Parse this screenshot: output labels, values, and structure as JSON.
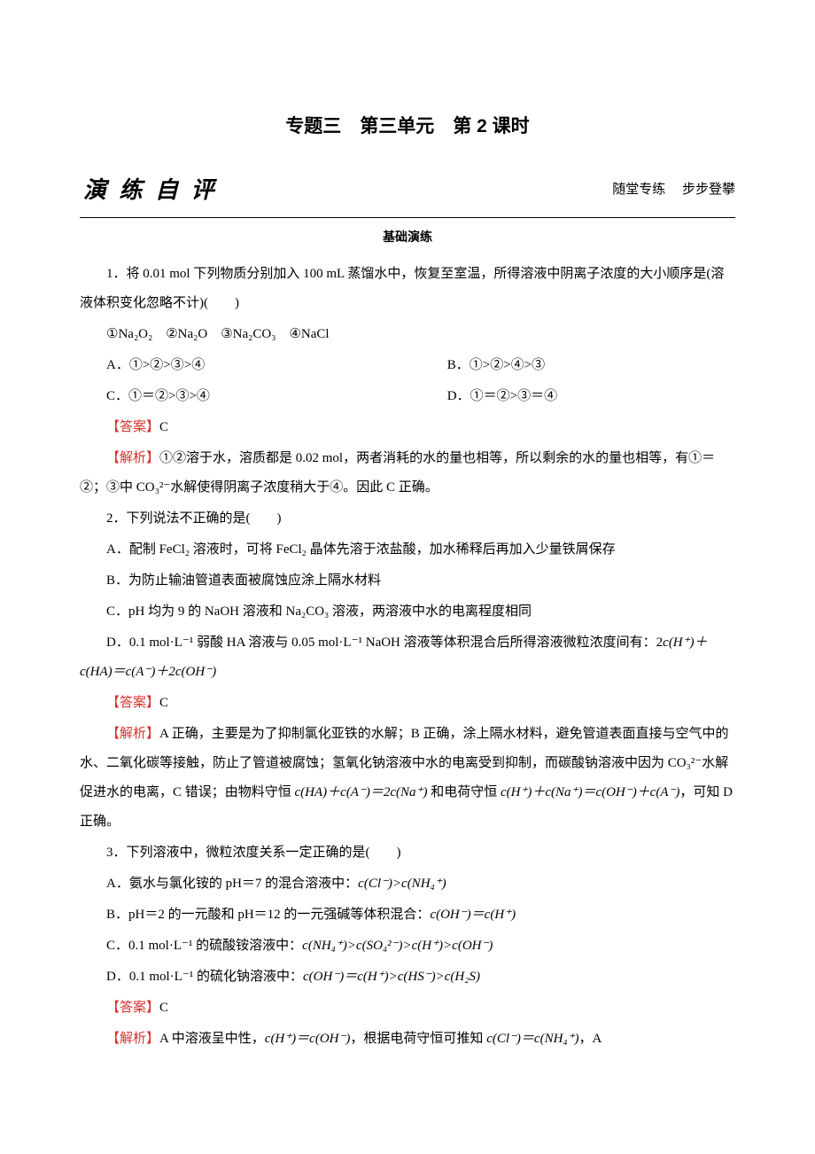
{
  "colors": {
    "text": "#000000",
    "answer": "#d8312f",
    "background": "#ffffff",
    "rule": "#000000"
  },
  "typography": {
    "body_font": "SimSun / 宋体",
    "title_font": "SimHei / 黑体",
    "kaiti_font": "KaiTi / 楷体",
    "body_size_pt": 15,
    "title_size_pt": 21,
    "section_title_size_pt": 26,
    "line_height": 2.2
  },
  "title": "专题三　第三单元　第 2 课时",
  "section": {
    "heading": "演 练 自 评",
    "subtitle": "随堂专练　 步步登攀",
    "sub_heading": "基础演练"
  },
  "q1": {
    "stem": "1．将 0.01 mol 下列物质分别加入 100 mL 蒸馏水中，恢复至室温，所得溶液中阴离子浓度的大小顺序是(溶液体积变化忽略不计)(　　)",
    "items": "①Na₂O₂　②Na₂O　③Na₂CO₃　④NaCl",
    "optA": "A．①>②>③>④",
    "optB": "B．①>②>④>③",
    "optC": "C．①＝②>③>④",
    "optD": "D．①＝②>③＝④",
    "answer_label": "【答案】",
    "answer_value": "C",
    "analysis_label": "【解析】",
    "analysis_text": "①②溶于水，溶质都是 0.02 mol，两者消耗的水的量也相等，所以剩余的水的量也相等，有①＝②；③中 CO₃²⁻水解使得阴离子浓度稍大于④。因此 C 正确。"
  },
  "q2": {
    "stem": "2．下列说法不正确的是(　　)",
    "optA": "A．配制 FeCl₂ 溶液时，可将 FeCl₂ 晶体先溶于浓盐酸，加水稀释后再加入少量铁屑保存",
    "optB": "B．为防止输油管道表面被腐蚀应涂上隔水材料",
    "optC": "C．pH 均为 9 的 NaOH 溶液和 Na₂CO₃ 溶液，两溶液中水的电离程度相同",
    "optD_pre": "D．0.1 mol·L⁻¹ 弱酸 HA 溶液与 0.05 mol·L⁻¹ NaOH 溶液等体积混合后所得溶液微粒浓度间有：2",
    "optD_formula": "c(H⁺)＋c(HA)＝c(A⁻)＋2c(OH⁻)",
    "answer_label": "【答案】",
    "answer_value": "C",
    "analysis_label": "【解析】",
    "analysis_text_1": "A 正确，主要是为了抑制氯化亚铁的水解；B 正确，涂上隔水材料，避免管道表面直接与空气中的水、二氧化碳等接触，防止了管道被腐蚀；氢氧化钠溶液中水的电离受到抑制，而碳酸钠溶液中因为 CO₃²⁻水解促进水的电离，C 错误；由物料守恒 ",
    "analysis_formula_1": "c(HA)＋c(A⁻)＝2c(Na⁺)",
    "analysis_text_2": " 和电荷守恒 ",
    "analysis_formula_2": "c(H⁺)＋c(Na⁺)＝c(OH⁻)＋c(A⁻)",
    "analysis_text_3": "，可知 D 正确。"
  },
  "q3": {
    "stem": "3．下列溶液中，微粒浓度关系一定正确的是(　　)",
    "optA_pre": "A．氨水与氯化铵的 pH＝7 的混合溶液中：",
    "optA_formula": "c(Cl⁻)>c(NH₄⁺)",
    "optB_pre": "B．pH＝2 的一元酸和 pH＝12 的一元强碱等体积混合：",
    "optB_formula": "c(OH⁻)＝c(H⁺)",
    "optC_pre": "C．0.1 mol·L⁻¹ 的硫酸铵溶液中：",
    "optC_formula": "c(NH₄⁺)>c(SO₄²⁻)>c(H⁺)>c(OH⁻)",
    "optD_pre": "D．0.1 mol·L⁻¹ 的硫化钠溶液中：",
    "optD_formula": "c(OH⁻)＝c(H⁺)>c(HS⁻)>c(H₂S)",
    "answer_label": "【答案】",
    "answer_value": "C",
    "analysis_label": "【解析】",
    "analysis_text_1": "A 中溶液呈中性，",
    "analysis_formula_1": "c(H⁺)＝c(OH⁻)",
    "analysis_text_2": "，根据电荷守恒可推知 ",
    "analysis_formula_2": "c(Cl⁻)＝c(NH₄⁺)",
    "analysis_text_3": "，A"
  }
}
